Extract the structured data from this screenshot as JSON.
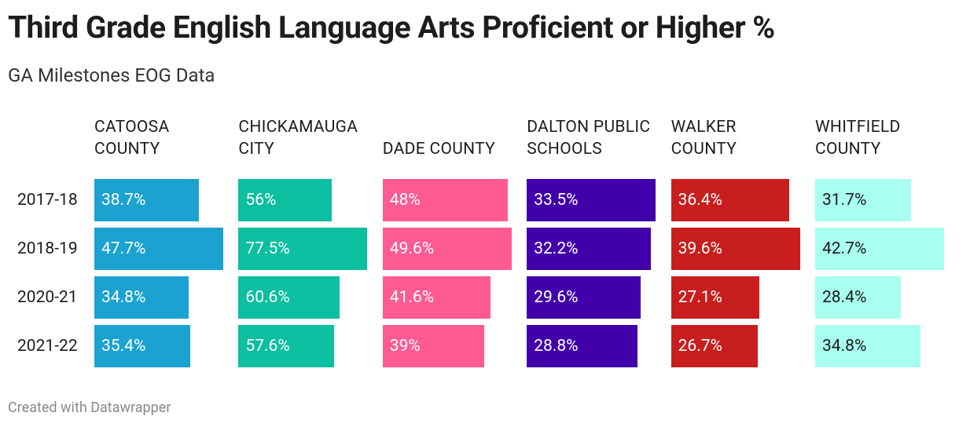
{
  "chart_data": {
    "type": "bar",
    "title": "Third Grade English Language Arts Proficient or Higher %",
    "subtitle": "GA Milestones EOG Data",
    "credit": "Created with Datawrapper",
    "categories": [
      "2017-18",
      "2018-19",
      "2020-21",
      "2021-22"
    ],
    "series": [
      {
        "name": "CATOOSA COUNTY",
        "color": "#1ba2d0",
        "values": [
          38.7,
          47.7,
          34.8,
          35.4
        ],
        "value_labels": [
          "38.7%",
          "47.7%",
          "34.8%",
          "35.4%"
        ]
      },
      {
        "name": "CHICKAMAUGA CITY",
        "color": "#0bbfa0",
        "values": [
          56,
          77.5,
          60.6,
          57.6
        ],
        "value_labels": [
          "56%",
          "77.5%",
          "60.6%",
          "57.6%"
        ]
      },
      {
        "name": "DADE COUNTY",
        "color": "#ff5a91",
        "values": [
          48,
          49.6,
          41.6,
          39
        ],
        "value_labels": [
          "48%",
          "49.6%",
          "41.6%",
          "39%"
        ]
      },
      {
        "name": "DALTON PUBLIC SCHOOLS",
        "color": "#4100aa",
        "values": [
          33.5,
          32.2,
          29.6,
          28.8
        ],
        "value_labels": [
          "33.5%",
          "32.2%",
          "29.6%",
          "28.8%"
        ]
      },
      {
        "name": "WALKER COUNTY",
        "color": "#c81e1e",
        "values": [
          36.4,
          39.6,
          27.1,
          26.7
        ],
        "value_labels": [
          "36.4%",
          "39.6%",
          "27.1%",
          "26.7%"
        ]
      },
      {
        "name": "WHITFIELD COUNTY",
        "color": "#a8fff0",
        "values": [
          31.7,
          42.7,
          28.4,
          34.8
        ],
        "value_labels": [
          "31.7%",
          "42.7%",
          "28.4%",
          "34.8%"
        ]
      }
    ]
  }
}
